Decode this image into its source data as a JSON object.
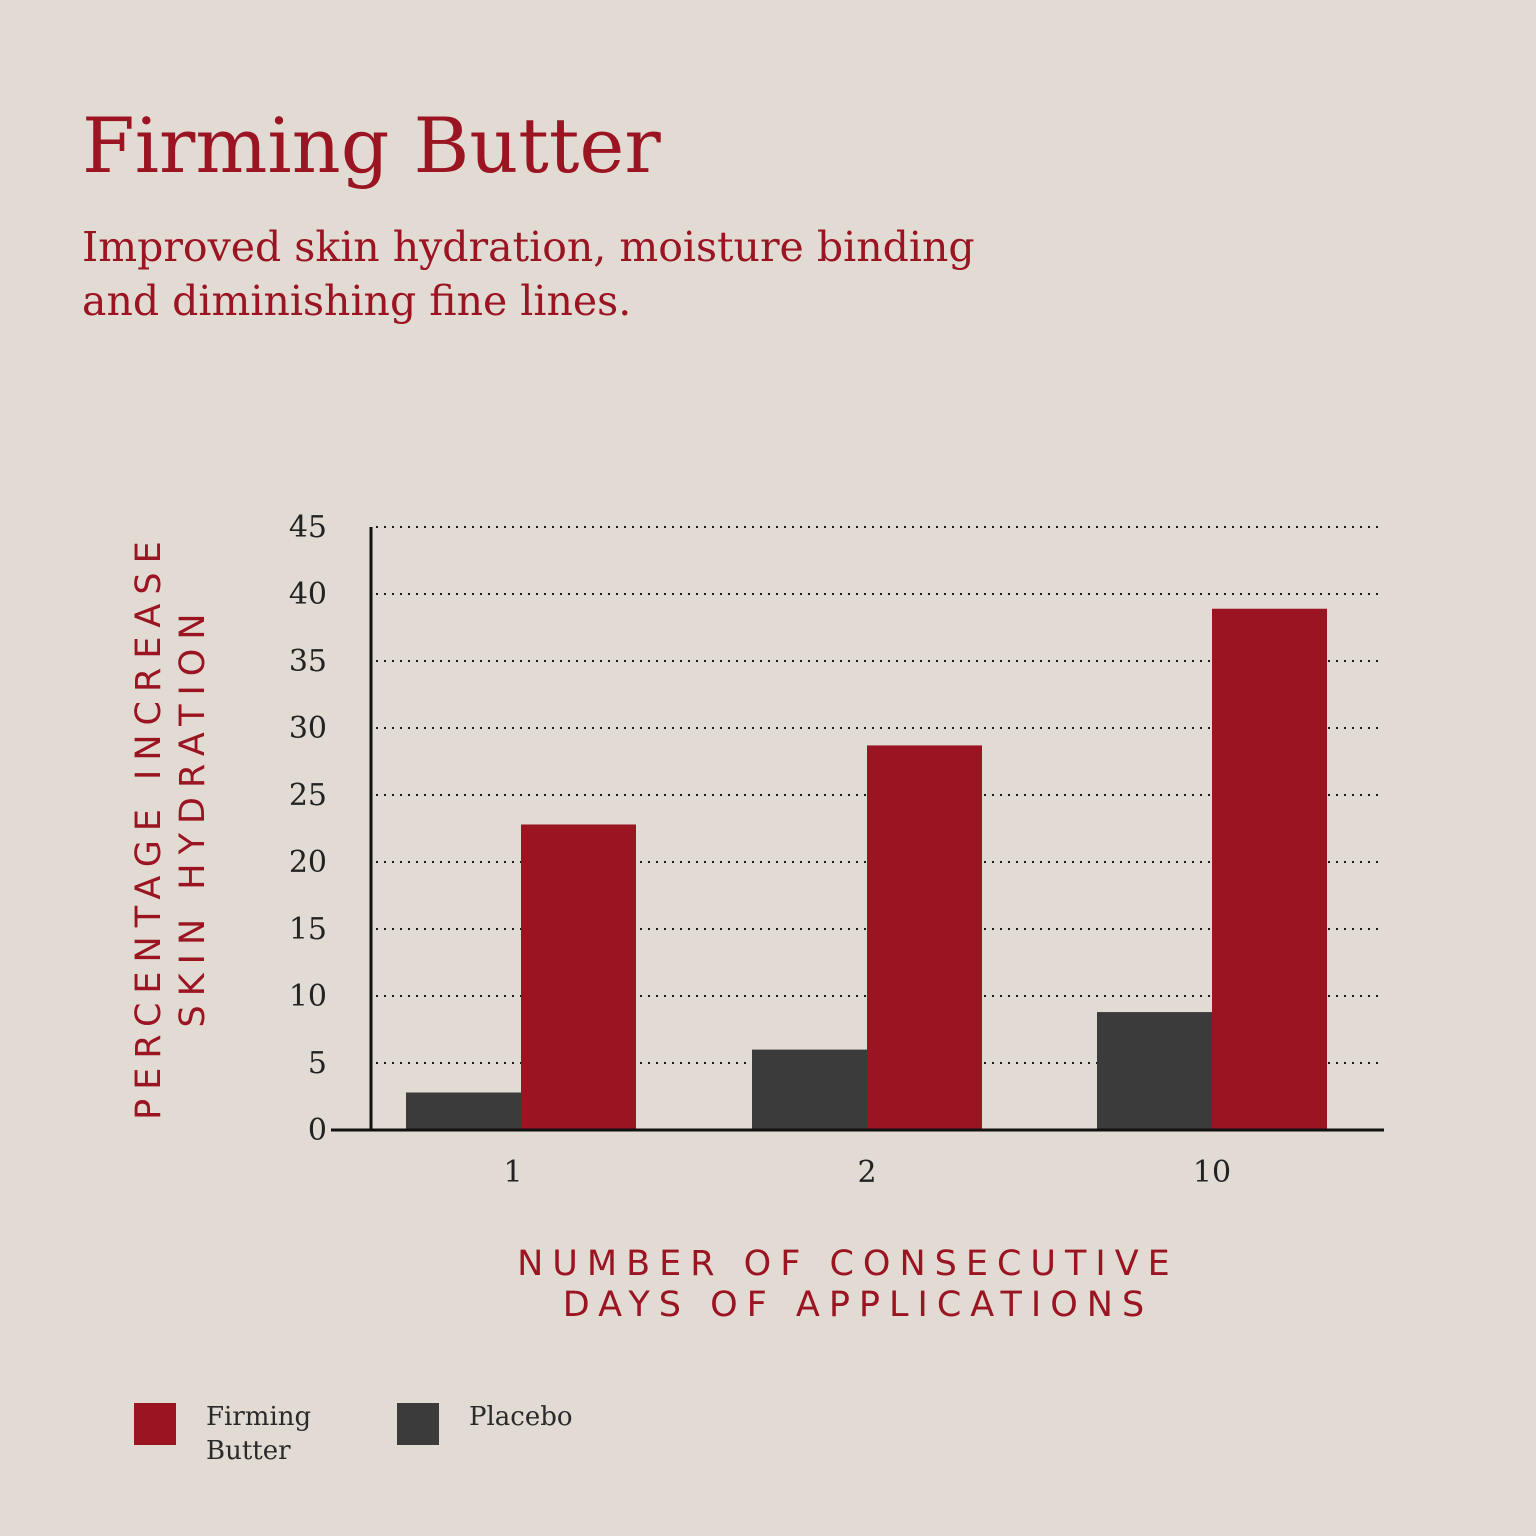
{
  "header": {
    "title": "Firming Butter",
    "subtitle": "Improved skin hydration, moisture binding and diminishing fine lines."
  },
  "legend": [
    {
      "label": "Firming Butter",
      "color": "#9b1422"
    },
    {
      "label": "Placebo",
      "color": "#3b3b3b"
    }
  ],
  "chart_data": {
    "type": "bar",
    "categories": [
      "1",
      "2",
      "10"
    ],
    "series": [
      {
        "name": "Placebo",
        "values": [
          2.8,
          6,
          8.8
        ],
        "color": "#3b3b3b"
      },
      {
        "name": "Firming Butter",
        "values": [
          22.8,
          28.7,
          38.9
        ],
        "color": "#9b1422"
      }
    ],
    "ylim": [
      0,
      45
    ],
    "yticks": [
      0,
      5,
      10,
      15,
      20,
      25,
      30,
      35,
      40,
      45
    ],
    "ylabel_lines": [
      "PERCENTAGE INCREASE",
      "SKIN HYDRATION"
    ],
    "xlabel_lines": [
      "NUMBER OF CONSECUTIVE",
      "DAYS OF APPLICATIONS"
    ],
    "grid": "dotted horizontal",
    "legend_position": "bottom-left"
  }
}
